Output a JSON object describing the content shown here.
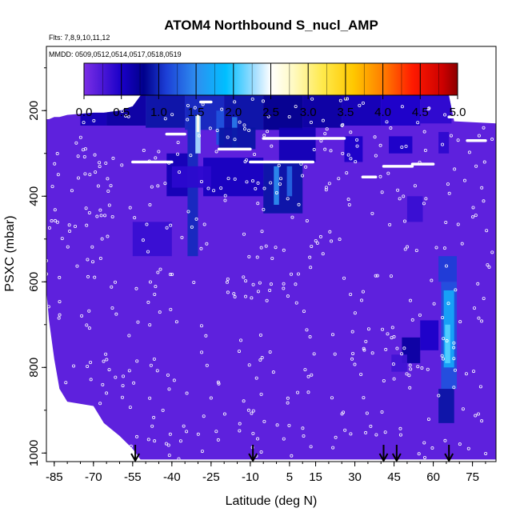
{
  "chart_data": {
    "type": "heatmap",
    "title": "ATOM4 Northbound S_nucl_AMP",
    "subtitle_flights": "Flts: 7,8,9,10,11,12",
    "subtitle_dates": "MMDD: 0509,0512,0514,0517,0518,0519",
    "xlabel": "Latitude (deg N)",
    "ylabel": "PSXC (mbar)",
    "xlim": [
      -88,
      84
    ],
    "ylim": [
      1020,
      50
    ],
    "x_ticks": [
      -85,
      -70,
      -55,
      -40,
      -25,
      -10,
      5,
      15,
      30,
      45,
      60,
      75
    ],
    "y_ticks": [
      200,
      400,
      600,
      800,
      1000
    ],
    "colorbar": {
      "min": 0.0,
      "max": 5.0,
      "ticks": [
        0.0,
        0.5,
        1.0,
        1.5,
        2.0,
        2.5,
        3.0,
        3.5,
        4.0,
        4.5,
        5.0
      ],
      "tick_labels": [
        "0.0",
        "0.5",
        "1.0",
        "1.5",
        "2.0",
        "2.5",
        "3.0",
        "3.5",
        "4.0",
        "4.5",
        "5.0"
      ]
    },
    "background_value": 0.15,
    "domain_envelope": [
      {
        "x": -88,
        "top": 220,
        "bottom": 620
      },
      {
        "x": -87,
        "top": 220,
        "bottom": 690
      },
      {
        "x": -85,
        "top": 215,
        "bottom": 780
      },
      {
        "x": -83,
        "top": 215,
        "bottom": 850
      },
      {
        "x": -80,
        "top": 210,
        "bottom": 880
      },
      {
        "x": -70,
        "top": 205,
        "bottom": 890
      },
      {
        "x": -66,
        "top": 205,
        "bottom": 930
      },
      {
        "x": -60,
        "top": 200,
        "bottom": 960
      },
      {
        "x": -55,
        "top": 190,
        "bottom": 990
      },
      {
        "x": -52,
        "top": 165,
        "bottom": 1015
      },
      {
        "x": -30,
        "top": 165,
        "bottom": 1015
      },
      {
        "x": 0,
        "top": 165,
        "bottom": 1015
      },
      {
        "x": 30,
        "top": 165,
        "bottom": 1015
      },
      {
        "x": 66,
        "top": 165,
        "bottom": 1015
      },
      {
        "x": 68,
        "top": 225,
        "bottom": 1015
      },
      {
        "x": 84,
        "top": 230,
        "bottom": 1015
      }
    ],
    "cells": [
      {
        "x0": -75,
        "x1": -65,
        "p0": 165,
        "p1": 235,
        "v": 0.6
      },
      {
        "x0": -65,
        "x1": -50,
        "p0": 165,
        "p1": 235,
        "v": 0.7
      },
      {
        "x0": -50,
        "x1": -35,
        "p0": 165,
        "p1": 240,
        "v": 0.9
      },
      {
        "x0": -35,
        "x1": -20,
        "p0": 165,
        "p1": 245,
        "v": 1.0
      },
      {
        "x0": -20,
        "x1": -5,
        "p0": 165,
        "p1": 245,
        "v": 0.9
      },
      {
        "x0": -5,
        "x1": 10,
        "p0": 165,
        "p1": 245,
        "v": 0.8
      },
      {
        "x0": 10,
        "x1": 25,
        "p0": 165,
        "p1": 240,
        "v": 0.7
      },
      {
        "x0": 25,
        "x1": 40,
        "p0": 165,
        "p1": 235,
        "v": 0.6
      },
      {
        "x0": 40,
        "x1": 55,
        "p0": 165,
        "p1": 235,
        "v": 0.5
      },
      {
        "x0": 55,
        "x1": 67,
        "p0": 165,
        "p1": 230,
        "v": 0.4
      },
      {
        "x0": -34,
        "x1": -30,
        "p0": 200,
        "p1": 540,
        "v": 1.0
      },
      {
        "x0": -31,
        "x1": -29,
        "p0": 210,
        "p1": 300,
        "v": 2.3
      },
      {
        "x0": -30.5,
        "x1": -29.5,
        "p0": 210,
        "p1": 250,
        "v": 2.6
      },
      {
        "x0": -23,
        "x1": -20,
        "p0": 200,
        "p1": 280,
        "v": 1.2
      },
      {
        "x0": -17,
        "x1": -15,
        "p0": 215,
        "p1": 290,
        "v": 1.4
      },
      {
        "x0": -22,
        "x1": -8,
        "p0": 240,
        "p1": 290,
        "v": 0.9
      },
      {
        "x0": -42,
        "x1": -34,
        "p0": 300,
        "p1": 400,
        "v": 0.6
      },
      {
        "x0": -28,
        "x1": -5,
        "p0": 310,
        "p1": 400,
        "v": 0.55
      },
      {
        "x0": -5,
        "x1": 10,
        "p0": 320,
        "p1": 440,
        "v": 0.9
      },
      {
        "x0": -1,
        "x1": 1,
        "p0": 330,
        "p1": 420,
        "v": 1.5
      },
      {
        "x0": 4,
        "x1": 6,
        "p0": 330,
        "p1": 400,
        "v": 1.3
      },
      {
        "x0": 1,
        "x1": 15,
        "p0": 240,
        "p1": 320,
        "v": 0.6
      },
      {
        "x0": 26,
        "x1": 33,
        "p0": 260,
        "p1": 320,
        "v": 0.5
      },
      {
        "x0": 43,
        "x1": 52,
        "p0": 260,
        "p1": 300,
        "v": 0.5
      },
      {
        "x0": 50,
        "x1": 56,
        "p0": 400,
        "p1": 460,
        "v": 0.35
      },
      {
        "x0": 62,
        "x1": 66,
        "p0": 250,
        "p1": 300,
        "v": 0.4
      },
      {
        "x0": -55,
        "x1": -40,
        "p0": 460,
        "p1": 540,
        "v": 0.35
      },
      {
        "x0": -40,
        "x1": -25,
        "p0": 330,
        "p1": 380,
        "v": 0.4
      },
      {
        "x0": 62,
        "x1": 69,
        "p0": 540,
        "p1": 600,
        "v": 1.1
      },
      {
        "x0": 63,
        "x1": 69,
        "p0": 600,
        "p1": 850,
        "v": 1.2
      },
      {
        "x0": 64,
        "x1": 68,
        "p0": 620,
        "p1": 800,
        "v": 1.7
      },
      {
        "x0": 64.5,
        "x1": 66.5,
        "p0": 700,
        "p1": 790,
        "v": 2.1
      },
      {
        "x0": 62,
        "x1": 68,
        "p0": 850,
        "p1": 930,
        "v": 0.9
      },
      {
        "x0": 48,
        "x1": 55,
        "p0": 730,
        "p1": 790,
        "v": 0.7
      },
      {
        "x0": 55,
        "x1": 62,
        "p0": 690,
        "p1": 760,
        "v": 0.5
      },
      {
        "x0": 44,
        "x1": 50,
        "p0": 770,
        "p1": 810,
        "v": 0.3
      }
    ],
    "flight_tracks": [
      {
        "x": [
          -75,
          -67
        ],
        "p": [
          185,
          185
        ]
      },
      {
        "x": [
          -29,
          -25
        ],
        "p": [
          180,
          180
        ]
      },
      {
        "x": [
          -42,
          -35
        ],
        "p": [
          255,
          255
        ]
      },
      {
        "x": [
          -22,
          -10
        ],
        "p": [
          290,
          290
        ]
      },
      {
        "x": [
          -5,
          18
        ],
        "p": [
          265,
          265
        ]
      },
      {
        "x": [
          18,
          26
        ],
        "p": [
          265,
          265
        ]
      },
      {
        "x": [
          -55,
          -40
        ],
        "p": [
          320,
          320
        ]
      },
      {
        "x": [
          -10,
          14
        ],
        "p": [
          320,
          320
        ]
      },
      {
        "x": [
          33,
          38
        ],
        "p": [
          355,
          355
        ]
      },
      {
        "x": [
          41,
          52
        ],
        "p": [
          330,
          330
        ]
      },
      {
        "x": [
          52,
          60
        ],
        "p": [
          325,
          325
        ]
      },
      {
        "x": [
          66,
          73
        ],
        "p": [
          215,
          215
        ]
      },
      {
        "x": [
          73,
          80
        ],
        "p": [
          270,
          270
        ]
      }
    ],
    "marker_latitudes": [
      -54,
      -9,
      41,
      46,
      66
    ]
  }
}
